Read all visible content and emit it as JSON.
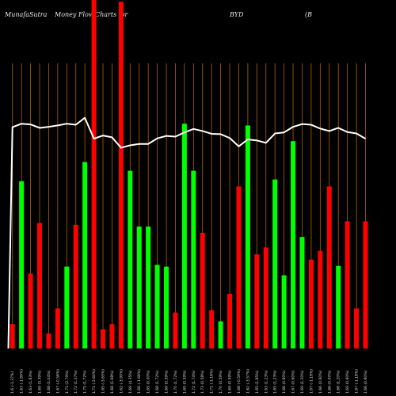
{
  "header": {
    "brand": "MunafaSutra",
    "chart_name": "Money Flow",
    "title_tail": "Charts for",
    "symbol": "BYD",
    "company": "(B"
  },
  "colors": {
    "background": "#000000",
    "up": "#00ff00",
    "down": "#ff0000",
    "line": "#ffffff",
    "grid": "#b0600a"
  },
  "chart_data": {
    "type": "bar",
    "title": "MunafaSutra Money Flow Charts for BYD (B",
    "grid": true,
    "ylim": [
      0,
      100
    ],
    "line_ylim": [
      0,
      100
    ],
    "categories": [
      "1.6 (-1.37%)",
      "1.63 (-1.89%)",
      "1.63 (1.83%)",
      "1.69 (5.39%)",
      "1.68 (1.04%)",
      "1.67 (-0.56%)",
      "1.71 (2.79%)",
      "1.72 (1.37%)",
      "1.75 (1.72%)",
      "1.71 (-2.60%)",
      "1.65 (-3.65%)",
      "1.68 (1.68%)",
      "1.62 (-3.90%)",
      "1.69 (4.35%)",
      "1.66 (-1.66%)",
      "1.65 (0.00%)",
      "1.68 (1.72%)",
      "1.69 (0.59%)",
      "1.70 (1.72%)",
      "1.69 (0.59%)",
      "1.72 (1.74%)",
      "1.73 (0.58%)",
      "1.71 (-1.16%)",
      "1.70 (0.59%)",
      "1.69 (0.59%)",
      "1.68 (-0.59%)",
      "1.62 (-3.57%)",
      "1.65 (1.85%)",
      "1.63 (1.23%)",
      "1.65 (1.23%)",
      "1.66 (0.60%)",
      "1.67 (0.60%)",
      "1.69 (1.20%)",
      "1.67 (-1.18%)",
      "1.66 (0.60%)",
      "1.66 (0.00%)",
      "1.68 (1.20%)",
      "1.69 (0.60%)",
      "1.67 (-1.18%)",
      "1.66 (0.60%)"
    ],
    "series": [
      {
        "kind": "bar",
        "values": [
          7,
          48,
          21.5,
          36,
          4.3,
          11.5,
          23.5,
          35.5,
          53.5,
          100,
          5.5,
          7,
          99.5,
          51,
          35,
          35,
          24,
          23.5,
          10.3,
          64.5,
          51,
          33.2,
          11,
          7.8,
          15.7,
          46.5,
          64,
          27,
          29,
          48.5,
          21,
          59.5,
          32,
          25.5,
          28,
          46.5,
          23.7,
          36.5,
          11.5,
          36.5
        ],
        "direction": [
          "down",
          "up",
          "down",
          "down",
          "down",
          "down",
          "up",
          "down",
          "up",
          "down",
          "down",
          "down",
          "down",
          "up",
          "up",
          "up",
          "up",
          "up",
          "down",
          "up",
          "up",
          "down",
          "down",
          "up",
          "down",
          "down",
          "up",
          "down",
          "down",
          "up",
          "up",
          "up",
          "up",
          "down",
          "down",
          "down",
          "up",
          "down",
          "down",
          "down"
        ]
      },
      {
        "kind": "line",
        "values": [
          63.5,
          64.5,
          64.3,
          63.3,
          63.6,
          64.0,
          64.5,
          64.2,
          66.2,
          60.2,
          61.1,
          60.6,
          57.6,
          58.3,
          58.7,
          58.7,
          60.3,
          61.0,
          60.8,
          62.0,
          63.0,
          62.4,
          61.6,
          61.5,
          60.4,
          58.0,
          60.0,
          59.7,
          59.0,
          61.7,
          62.0,
          63.6,
          64.4,
          64.2,
          63.1,
          62.4,
          63.3,
          62.1,
          61.7,
          60.2
        ]
      }
    ]
  }
}
